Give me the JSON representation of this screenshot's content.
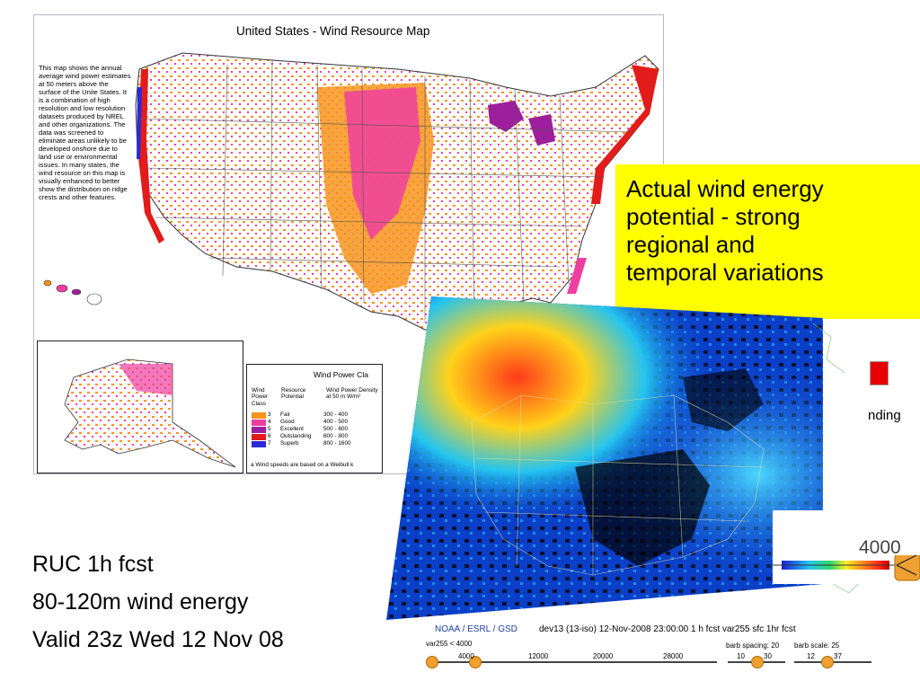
{
  "wind_map": {
    "title": "United States - Wind Resource Map",
    "description": "This map shows the annual average wind power estimates at 50 meters above the surface of the Unite States. It is a combination of high resolution and low resolution datasets produced by NREL and other organizations. The data was screened to eliminate areas unlikely to be developed onshore due to land use or environmental issues. In many states, the wind resource on this map is visually enhanced to better show the distribution on ridge crests and other features.",
    "legend": {
      "title": "Wind Power Cla",
      "headers": [
        "Wind Power Class",
        "Resource Potential",
        "Wind Power Density at 50 m W/m²"
      ],
      "rows": [
        {
          "cls": "3",
          "potential": "Fair",
          "density": "300 - 400",
          "color": "#f7941d"
        },
        {
          "cls": "4",
          "potential": "Good",
          "density": "400 - 500",
          "color": "#ee3fa0"
        },
        {
          "cls": "5",
          "potential": "Excellent",
          "density": "500 - 600",
          "color": "#9e1f9e"
        },
        {
          "cls": "6",
          "potential": "Outstanding",
          "density": "600 - 800",
          "color": "#e21b1b"
        },
        {
          "cls": "7",
          "potential": "Superb",
          "density": "800 - 1600",
          "color": "#2b2bd6"
        }
      ],
      "note": "a Wind speeds are based on a Weibull k"
    }
  },
  "callout": {
    "lines": [
      "Actual wind energy",
      "potential - strong",
      "regional and",
      "temporal variations"
    ]
  },
  "fragment_text": "nding",
  "zoom_value": "4000",
  "caption": {
    "line1": "RUC 1h fcst",
    "line2": "80-120m wind energy",
    "line3": "Valid 23z Wed 12 Nov 08"
  },
  "info_strip": {
    "agency": "NOAA / ESRL / GSD",
    "product": "dev13 (13-iso) 12-Nov-2008 23:00:00 1 h fcst var255 sfc 1hr fcst",
    "var_label": "var255 < 4000",
    "ticks": [
      "4000",
      "12000",
      "20000",
      "28000"
    ],
    "barb_spacing_label": "barb spacing: 20",
    "barb_scale_label": "barb scale: 25",
    "barb_spacing_ticks": [
      "10",
      "30"
    ],
    "barb_scale_ticks": [
      "12",
      "37"
    ]
  },
  "colors": {
    "callout_bg": "#ffff00",
    "agency_text": "#1f3f9f",
    "map_border": "#b7b7c9"
  }
}
